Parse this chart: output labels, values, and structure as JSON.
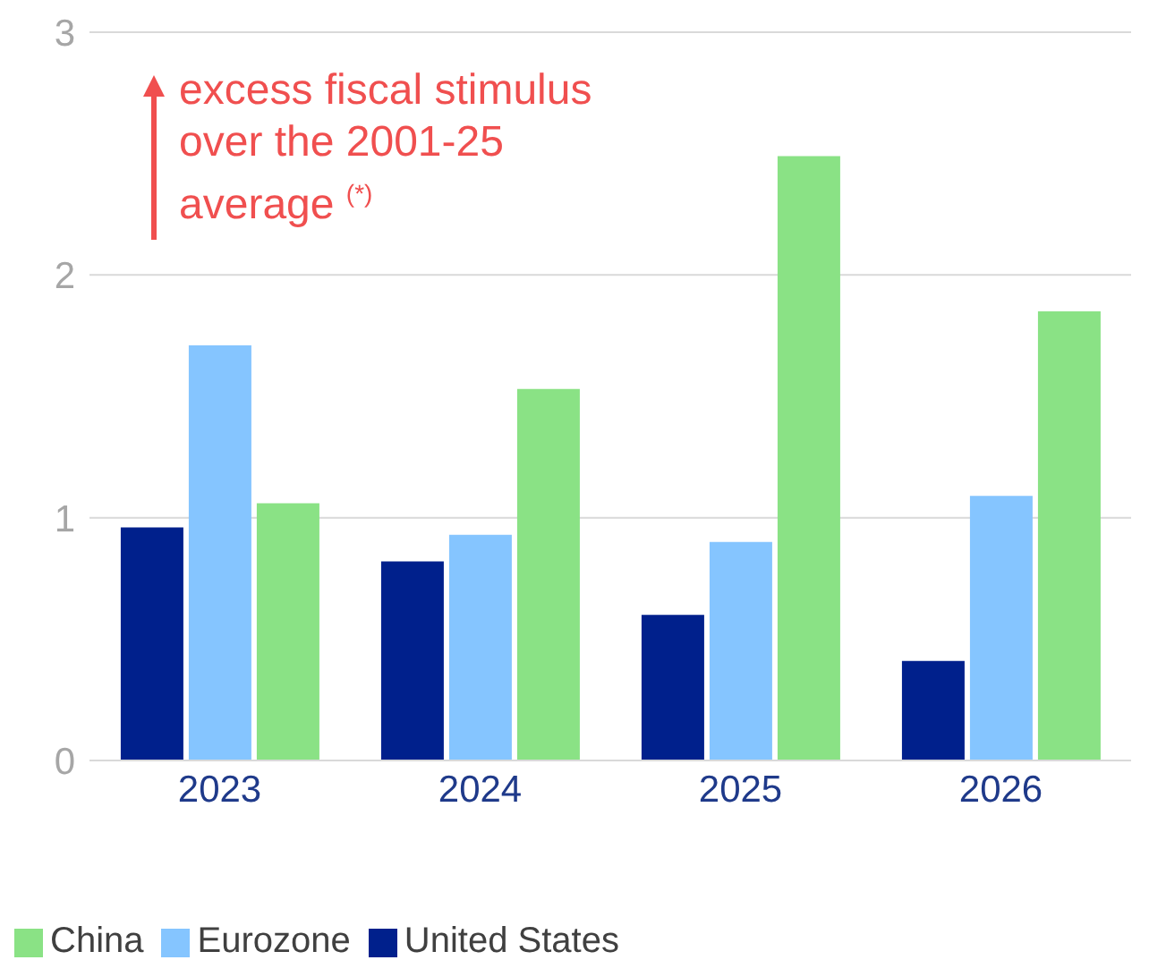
{
  "chart_data": {
    "type": "bar",
    "categories": [
      "2023",
      "2024",
      "2025",
      "2026"
    ],
    "series": [
      {
        "name": "United States",
        "color": "#00208c",
        "values": [
          0.96,
          0.82,
          0.6,
          0.41
        ]
      },
      {
        "name": "Eurozone",
        "color": "#85c5ff",
        "values": [
          1.71,
          0.93,
          0.9,
          1.09
        ]
      },
      {
        "name": "China",
        "color": "#8ae285",
        "values": [
          1.06,
          1.53,
          2.49,
          1.85
        ]
      }
    ],
    "ylim": [
      0,
      3
    ],
    "yticks": [
      0,
      1,
      2,
      3
    ],
    "grid": "y",
    "legend": "bottom",
    "annotations": [
      "excess fiscal stimulus over the 2001-25 average $^{(*)}$"
    ]
  }
}
